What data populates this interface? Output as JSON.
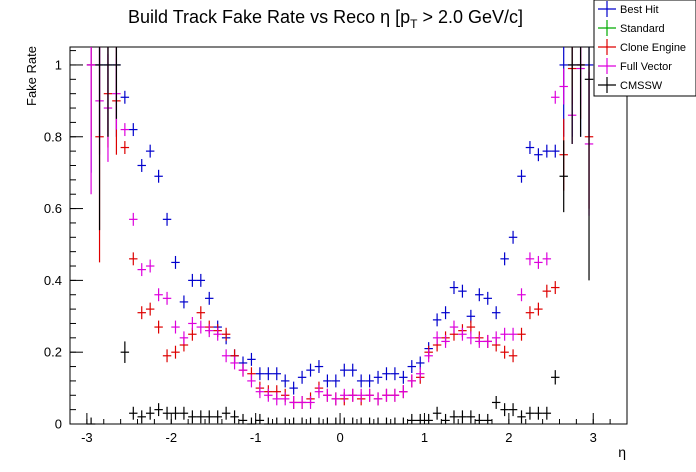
{
  "chart_data": {
    "type": "scatter",
    "title_main": "Build Track Fake Rate vs Reco ",
    "title_eta": "η",
    "title_pt_open": " [p",
    "title_pt_sub": "T",
    "title_tail": " > 2.0 GeV/c]",
    "xlabel": "η",
    "ylabel": "Fake Rate",
    "xlim": [
      -3.2,
      3.4
    ],
    "ylim": [
      0,
      1.05
    ],
    "x_ticks": [
      "-3",
      "-2",
      "-1",
      "0",
      "1",
      "2",
      "3"
    ],
    "y_ticks": [
      "0",
      "0.2",
      "0.4",
      "0.6",
      "0.8",
      "1"
    ],
    "bin_half_width": 0.05,
    "legend_position": "top-right",
    "series": [
      {
        "name": "Best Hit",
        "color": "#0000cc",
        "x": [
          -2.95,
          -2.85,
          -2.75,
          -2.65,
          -2.55,
          -2.45,
          -2.35,
          -2.25,
          -2.15,
          -2.05,
          -1.95,
          -1.85,
          -1.75,
          -1.65,
          -1.55,
          -1.45,
          -1.35,
          -1.25,
          -1.15,
          -1.05,
          -0.95,
          -0.85,
          -0.75,
          -0.65,
          -0.55,
          -0.45,
          -0.35,
          -0.25,
          -0.15,
          -0.05,
          0.05,
          0.15,
          0.25,
          0.35,
          0.45,
          0.55,
          0.65,
          0.75,
          0.85,
          0.95,
          1.05,
          1.15,
          1.25,
          1.35,
          1.45,
          1.55,
          1.65,
          1.75,
          1.85,
          1.95,
          2.05,
          2.15,
          2.25,
          2.35,
          2.45,
          2.55,
          2.65,
          2.75,
          2.85,
          2.95
        ],
        "y": [
          1.0,
          1.0,
          1.0,
          1.0,
          0.91,
          0.82,
          0.72,
          0.76,
          0.69,
          0.57,
          0.45,
          0.34,
          0.4,
          0.4,
          0.35,
          0.27,
          0.24,
          0.19,
          0.17,
          0.18,
          0.14,
          0.14,
          0.14,
          0.12,
          0.1,
          0.13,
          0.15,
          0.16,
          0.12,
          0.12,
          0.15,
          0.15,
          0.12,
          0.12,
          0.13,
          0.14,
          0.14,
          0.13,
          0.16,
          0.17,
          0.21,
          0.29,
          0.31,
          0.38,
          0.37,
          0.3,
          0.36,
          0.35,
          0.31,
          0.46,
          0.52,
          0.69,
          0.77,
          0.75,
          0.76,
          0.76,
          1.0,
          1.0,
          1.0,
          1.0
        ],
        "err": [
          0.3,
          0.2,
          0.2,
          0.2,
          0,
          0,
          0,
          0,
          0,
          0,
          0,
          0,
          0,
          0,
          0,
          0,
          0,
          0,
          0,
          0,
          0,
          0,
          0,
          0,
          0,
          0,
          0,
          0,
          0,
          0,
          0,
          0,
          0,
          0,
          0,
          0,
          0,
          0,
          0,
          0,
          0,
          0,
          0,
          0,
          0,
          0,
          0,
          0,
          0,
          0,
          0,
          0,
          0,
          0,
          0,
          0,
          0.2,
          0.2,
          0.2,
          0.2
        ]
      },
      {
        "name": "Standard",
        "color": "#00aa00",
        "x": [],
        "y": [],
        "err": []
      },
      {
        "name": "Clone Engine",
        "color": "#dd0000",
        "x": [
          -2.95,
          -2.85,
          -2.75,
          -2.65,
          -2.55,
          -2.45,
          -2.35,
          -2.25,
          -2.15,
          -2.05,
          -1.95,
          -1.85,
          -1.75,
          -1.65,
          -1.55,
          -1.45,
          -1.35,
          -1.25,
          -1.15,
          -1.05,
          -0.95,
          -0.85,
          -0.75,
          -0.65,
          -0.55,
          -0.45,
          -0.35,
          -0.25,
          -0.15,
          -0.05,
          0.05,
          0.15,
          0.25,
          0.35,
          0.45,
          0.55,
          0.65,
          0.75,
          0.85,
          0.95,
          1.05,
          1.15,
          1.25,
          1.35,
          1.45,
          1.55,
          1.65,
          1.75,
          1.85,
          1.95,
          2.05,
          2.15,
          2.25,
          2.35,
          2.45,
          2.55,
          2.65,
          2.75,
          2.85,
          2.95
        ],
        "y": [
          1.0,
          0.8,
          0.92,
          0.9,
          0.77,
          0.46,
          0.31,
          0.32,
          0.27,
          0.19,
          0.2,
          0.22,
          0.25,
          0.31,
          0.27,
          0.26,
          0.25,
          0.19,
          0.15,
          0.14,
          0.1,
          0.09,
          0.09,
          0.08,
          0.06,
          0.06,
          0.07,
          0.1,
          0.08,
          0.07,
          0.07,
          0.08,
          0.07,
          0.08,
          0.07,
          0.08,
          0.08,
          0.09,
          0.12,
          0.13,
          0.2,
          0.22,
          0.24,
          0.25,
          0.26,
          0.27,
          0.24,
          0.23,
          0.22,
          0.2,
          0.19,
          0.25,
          0.31,
          0.32,
          0.37,
          0.38,
          0.75,
          0.99,
          1.0,
          0.8
        ],
        "err": [
          0.2,
          0.35,
          0.15,
          0.15,
          0,
          0,
          0,
          0,
          0,
          0,
          0,
          0,
          0,
          0,
          0,
          0,
          0,
          0,
          0,
          0,
          0,
          0,
          0,
          0,
          0,
          0,
          0,
          0,
          0,
          0,
          0,
          0,
          0,
          0,
          0,
          0,
          0,
          0,
          0,
          0,
          0,
          0,
          0,
          0,
          0,
          0,
          0,
          0,
          0,
          0,
          0,
          0,
          0,
          0,
          0,
          0,
          0.1,
          0.1,
          0.15,
          0.2
        ]
      },
      {
        "name": "Full Vector",
        "color": "#dd00dd",
        "x": [
          -2.95,
          -2.85,
          -2.75,
          -2.65,
          -2.55,
          -2.45,
          -2.35,
          -2.25,
          -2.15,
          -2.05,
          -1.95,
          -1.85,
          -1.75,
          -1.65,
          -1.55,
          -1.45,
          -1.35,
          -1.25,
          -1.15,
          -1.05,
          -0.95,
          -0.85,
          -0.75,
          -0.65,
          -0.55,
          -0.45,
          -0.35,
          -0.25,
          -0.15,
          -0.05,
          0.05,
          0.15,
          0.25,
          0.35,
          0.45,
          0.55,
          0.65,
          0.75,
          0.85,
          0.95,
          1.05,
          1.15,
          1.25,
          1.35,
          1.45,
          1.55,
          1.65,
          1.75,
          1.85,
          1.95,
          2.05,
          2.15,
          2.25,
          2.35,
          2.45,
          2.55,
          2.65,
          2.75,
          2.85,
          2.95
        ],
        "y": [
          1.0,
          0.9,
          0.88,
          0.92,
          0.82,
          0.57,
          0.43,
          0.44,
          0.36,
          0.35,
          0.27,
          0.24,
          0.28,
          0.27,
          0.26,
          0.25,
          0.19,
          0.17,
          0.15,
          0.12,
          0.09,
          0.08,
          0.07,
          0.07,
          0.06,
          0.06,
          0.06,
          0.09,
          0.08,
          0.07,
          0.08,
          0.08,
          0.08,
          0.08,
          0.07,
          0.08,
          0.08,
          0.09,
          0.12,
          0.14,
          0.19,
          0.24,
          0.23,
          0.27,
          0.25,
          0.24,
          0.23,
          0.23,
          0.24,
          0.25,
          0.25,
          0.36,
          0.46,
          0.45,
          0.46,
          0.91,
          0.94,
          0.86,
          0.99,
          0.78
        ],
        "err": [
          0.36,
          0.15,
          0.15,
          0.1,
          0,
          0,
          0,
          0,
          0,
          0,
          0,
          0,
          0,
          0,
          0,
          0,
          0,
          0,
          0,
          0,
          0,
          0,
          0,
          0,
          0,
          0,
          0,
          0,
          0,
          0,
          0,
          0,
          0,
          0,
          0,
          0,
          0,
          0,
          0,
          0,
          0,
          0,
          0,
          0,
          0,
          0,
          0,
          0,
          0,
          0,
          0,
          0,
          0,
          0,
          0,
          0,
          0.05,
          0.08,
          0.1,
          0.2
        ]
      },
      {
        "name": "CMSSW",
        "color": "#000000",
        "x": [
          -2.95,
          -2.85,
          -2.75,
          -2.65,
          -2.55,
          -2.45,
          -2.35,
          -2.25,
          -2.15,
          -2.05,
          -1.95,
          -1.85,
          -1.75,
          -1.65,
          -1.55,
          -1.45,
          -1.35,
          -1.25,
          -1.15,
          -1.05,
          -0.95,
          -0.85,
          -0.75,
          -0.65,
          -0.55,
          -0.45,
          -0.35,
          -0.25,
          -0.15,
          -0.05,
          0.05,
          0.15,
          0.25,
          0.35,
          0.45,
          0.55,
          0.65,
          0.75,
          0.85,
          0.95,
          1.05,
          1.15,
          1.25,
          1.35,
          1.45,
          1.55,
          1.65,
          1.75,
          1.85,
          1.95,
          2.05,
          2.15,
          2.25,
          2.35,
          2.45,
          2.55,
          2.65,
          2.75,
          2.85,
          2.95
        ],
        "y": [
          0.0,
          1.0,
          1.0,
          1.0,
          0.2,
          0.03,
          0.02,
          0.03,
          0.04,
          0.03,
          0.03,
          0.03,
          0.02,
          0.02,
          0.02,
          0.02,
          0.03,
          0.02,
          0.01,
          0.0,
          0.01,
          0.0,
          0.0,
          0.0,
          0.0,
          0.0,
          0.0,
          0.0,
          0.0,
          0.0,
          0.0,
          0.0,
          0.0,
          0.0,
          0.0,
          0.0,
          0.0,
          0.0,
          0.01,
          0.01,
          0.01,
          0.03,
          0.01,
          0.02,
          0.02,
          0.02,
          0.01,
          0.01,
          0.06,
          0.04,
          0.04,
          0.02,
          0.03,
          0.03,
          0.03,
          0.13,
          0.69,
          1.0,
          1.0,
          0.96
        ],
        "err": [
          0,
          0.46,
          0.2,
          0.15,
          0.03,
          0,
          0,
          0,
          0,
          0,
          0,
          0,
          0,
          0,
          0,
          0,
          0,
          0,
          0,
          0,
          0,
          0,
          0,
          0,
          0,
          0,
          0,
          0,
          0,
          0,
          0,
          0,
          0,
          0,
          0,
          0,
          0,
          0,
          0,
          0,
          0,
          0,
          0,
          0,
          0,
          0,
          0,
          0,
          0,
          0,
          0,
          0,
          0,
          0,
          0,
          0.02,
          0.1,
          0.22,
          0.2,
          0.56
        ]
      }
    ]
  }
}
